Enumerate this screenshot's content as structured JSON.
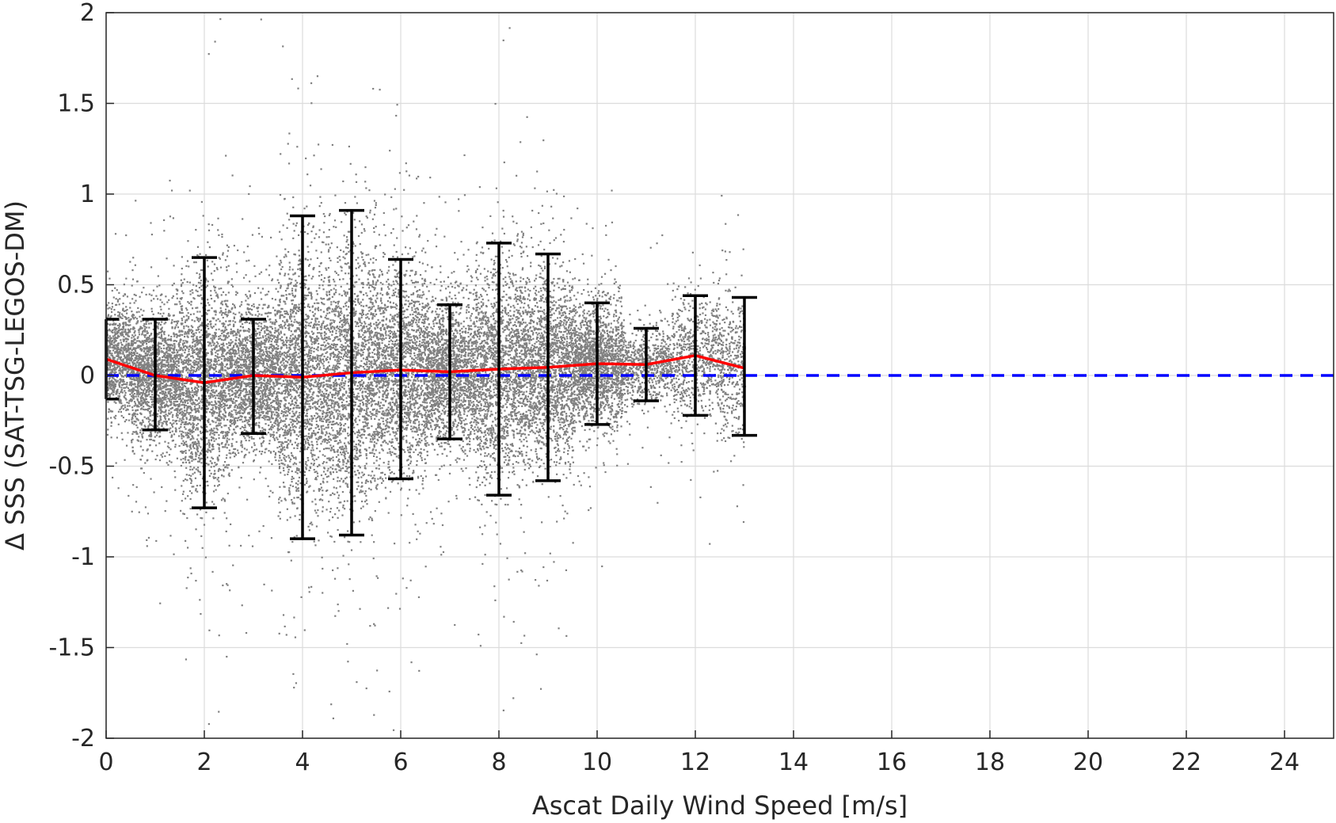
{
  "chart_data": {
    "type": "scatter",
    "title": "",
    "xlabel": "Ascat Daily Wind Speed [m/s]",
    "ylabel": "Δ SSS (SAT-TSG-LEGOS-DM)",
    "xlim": [
      0,
      25
    ],
    "ylim": [
      -2,
      2
    ],
    "x_ticks": [
      "0",
      "2",
      "4",
      "6",
      "8",
      "10",
      "12",
      "14",
      "16",
      "18",
      "20",
      "22",
      "24"
    ],
    "y_ticks": [
      "2",
      "1.5",
      "1",
      "0.5",
      "0",
      "-0.5",
      "-1",
      "-1.5",
      "-2"
    ],
    "grid": true,
    "reference_line": {
      "y": 0,
      "style": "dashed",
      "color": "#0000ff"
    },
    "mean_line": {
      "color": "#ff0000",
      "x": [
        0,
        1,
        2,
        3,
        4,
        5,
        6,
        7,
        8,
        9,
        10,
        11,
        12,
        13
      ],
      "y": [
        0.09,
        0.0,
        -0.04,
        0.0,
        -0.01,
        0.015,
        0.03,
        0.02,
        0.035,
        0.045,
        0.065,
        0.06,
        0.11,
        0.04
      ]
    },
    "error_bars": {
      "color": "#000000",
      "x": [
        0,
        1,
        2,
        3,
        4,
        5,
        6,
        7,
        8,
        9,
        10,
        11,
        12,
        13
      ],
      "lower": [
        -0.13,
        -0.3,
        -0.73,
        -0.32,
        -0.9,
        -0.88,
        -0.57,
        -0.35,
        -0.66,
        -0.58,
        -0.27,
        -0.14,
        -0.22,
        -0.33
      ],
      "upper": [
        0.31,
        0.31,
        0.65,
        0.31,
        0.88,
        0.91,
        0.64,
        0.39,
        0.73,
        0.67,
        0.4,
        0.26,
        0.44,
        0.43
      ]
    },
    "scatter": {
      "color": "#808080",
      "description_range_x": [
        0,
        13
      ],
      "bins": [
        {
          "x": 0,
          "sd": 0.15,
          "mean": 0.09
        },
        {
          "x": 1,
          "sd": 0.18,
          "mean": 0.0
        },
        {
          "x": 2,
          "sd": 0.28,
          "mean": -0.04
        },
        {
          "x": 3,
          "sd": 0.2,
          "mean": 0.0
        },
        {
          "x": 4,
          "sd": 0.34,
          "mean": -0.01
        },
        {
          "x": 5,
          "sd": 0.35,
          "mean": 0.015
        },
        {
          "x": 6,
          "sd": 0.28,
          "mean": 0.03
        },
        {
          "x": 7,
          "sd": 0.2,
          "mean": 0.02
        },
        {
          "x": 8,
          "sd": 0.28,
          "mean": 0.035
        },
        {
          "x": 9,
          "sd": 0.25,
          "mean": 0.045
        },
        {
          "x": 10,
          "sd": 0.16,
          "mean": 0.065
        },
        {
          "x": 11,
          "sd": 0.1,
          "mean": 0.06
        },
        {
          "x": 12,
          "sd": 0.16,
          "mean": 0.11
        },
        {
          "x": 13,
          "sd": 0.18,
          "mean": 0.04
        }
      ]
    }
  }
}
